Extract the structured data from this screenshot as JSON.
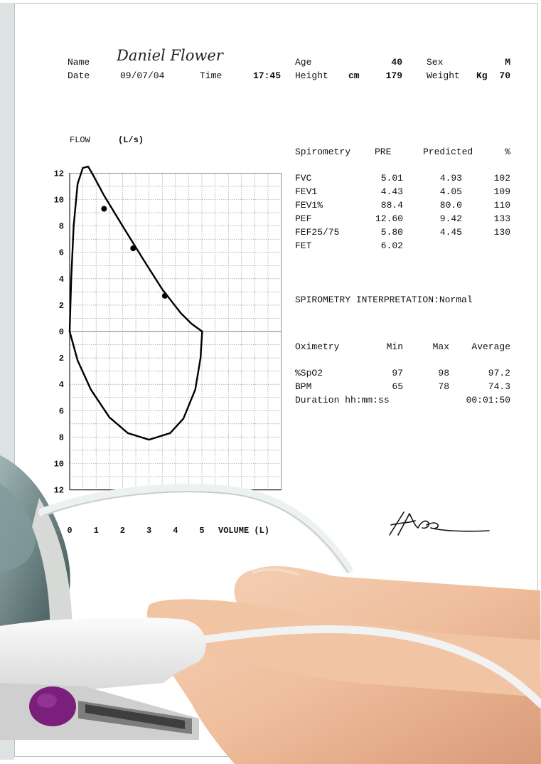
{
  "patient": {
    "name_label": "Name",
    "name": "Daniel Flower",
    "date_label": "Date",
    "date": "09/07/04",
    "time_label": "Time",
    "time": "17:45",
    "age_label": "Age",
    "age": "40",
    "sex_label": "Sex",
    "sex": "M",
    "height_label": "Height",
    "height_unit": "cm",
    "height": "179",
    "weight_label": "Weight",
    "weight_unit": "Kg",
    "weight": "70"
  },
  "spirometry": {
    "headers": [
      "Spirometry",
      "PRE",
      "Predicted",
      "%"
    ],
    "rows": [
      {
        "label": "FVC",
        "pre": "5.01",
        "predicted": "4.93",
        "pct": "102"
      },
      {
        "label": "FEV1",
        "pre": "4.43",
        "predicted": "4.05",
        "pct": "109"
      },
      {
        "label": "FEV1%",
        "pre": "88.4",
        "predicted": "80.0",
        "pct": "110"
      },
      {
        "label": "PEF",
        "pre": "12.60",
        "predicted": "9.42",
        "pct": "133"
      },
      {
        "label": "FEF25/75",
        "pre": "5.80",
        "predicted": "4.45",
        "pct": "130"
      },
      {
        "label": "FET",
        "pre": "6.02",
        "predicted": "",
        "pct": ""
      }
    ],
    "interpretation": "SPIROMETRY INTERPRETATION:Normal"
  },
  "oximetry": {
    "headers": [
      "Oximetry",
      "Min",
      "Max",
      "Average"
    ],
    "rows": [
      {
        "label": "%SpO2",
        "min": "97",
        "max": "98",
        "avg": "97.2"
      },
      {
        "label": "BPM",
        "min": "65",
        "max": "78",
        "avg": "74.3"
      }
    ],
    "duration_label": "Duration hh:mm:ss",
    "duration": "00:01:50"
  },
  "chart_data": {
    "type": "line",
    "ylabel": "FLOW",
    "yunit": "(L/s)",
    "xlabel": "VOLUME (L)",
    "xlim": [
      0,
      8
    ],
    "ylim": [
      -12,
      12
    ],
    "x_ticks": [
      "0",
      "1",
      "2",
      "3",
      "4",
      "5"
    ],
    "y_ticks": [
      {
        "v": 12,
        "label": "12"
      },
      {
        "v": 10,
        "label": "10"
      },
      {
        "v": 8,
        "label": "8"
      },
      {
        "v": 6,
        "label": "6"
      },
      {
        "v": 4,
        "label": "4"
      },
      {
        "v": 2,
        "label": "2"
      },
      {
        "v": 0,
        "label": "0"
      },
      {
        "v": -2,
        "label": "2"
      },
      {
        "v": -4,
        "label": "4"
      },
      {
        "v": -6,
        "label": "6"
      },
      {
        "v": -8,
        "label": "8"
      },
      {
        "v": -10,
        "label": "10"
      },
      {
        "v": -12,
        "label": "12"
      }
    ],
    "grid": true,
    "series": [
      {
        "values": [
          [
            0,
            0
          ],
          [
            0.06,
            4
          ],
          [
            0.15,
            8
          ],
          [
            0.3,
            11.2
          ],
          [
            0.5,
            12.4
          ],
          [
            0.7,
            12.5
          ],
          [
            0.9,
            11.8
          ],
          [
            1.3,
            10.3
          ],
          [
            2,
            8
          ],
          [
            2.8,
            5.4
          ],
          [
            3.5,
            3.2
          ],
          [
            4.2,
            1.4
          ],
          [
            4.6,
            0.6
          ],
          [
            5.01,
            0
          ]
        ]
      },
      {
        "values": [
          [
            0,
            0
          ],
          [
            0.3,
            -2.2
          ],
          [
            0.8,
            -4.4
          ],
          [
            1.5,
            -6.5
          ],
          [
            2.2,
            -7.7
          ],
          [
            3,
            -8.2
          ],
          [
            3.8,
            -7.7
          ],
          [
            4.3,
            -6.6
          ],
          [
            4.75,
            -4.4
          ],
          [
            4.95,
            -2
          ],
          [
            5.01,
            0
          ]
        ]
      }
    ],
    "points": [
      [
        1.3,
        9.3
      ],
      [
        2.4,
        6.3
      ],
      [
        3.6,
        2.7
      ]
    ],
    "line_color": "#000000",
    "grid_color": "#8a8a8a"
  },
  "colors": {
    "paper_border": "#b9c0c2",
    "device_purple": "#7a1f7c",
    "skin": "#efbe9d"
  }
}
